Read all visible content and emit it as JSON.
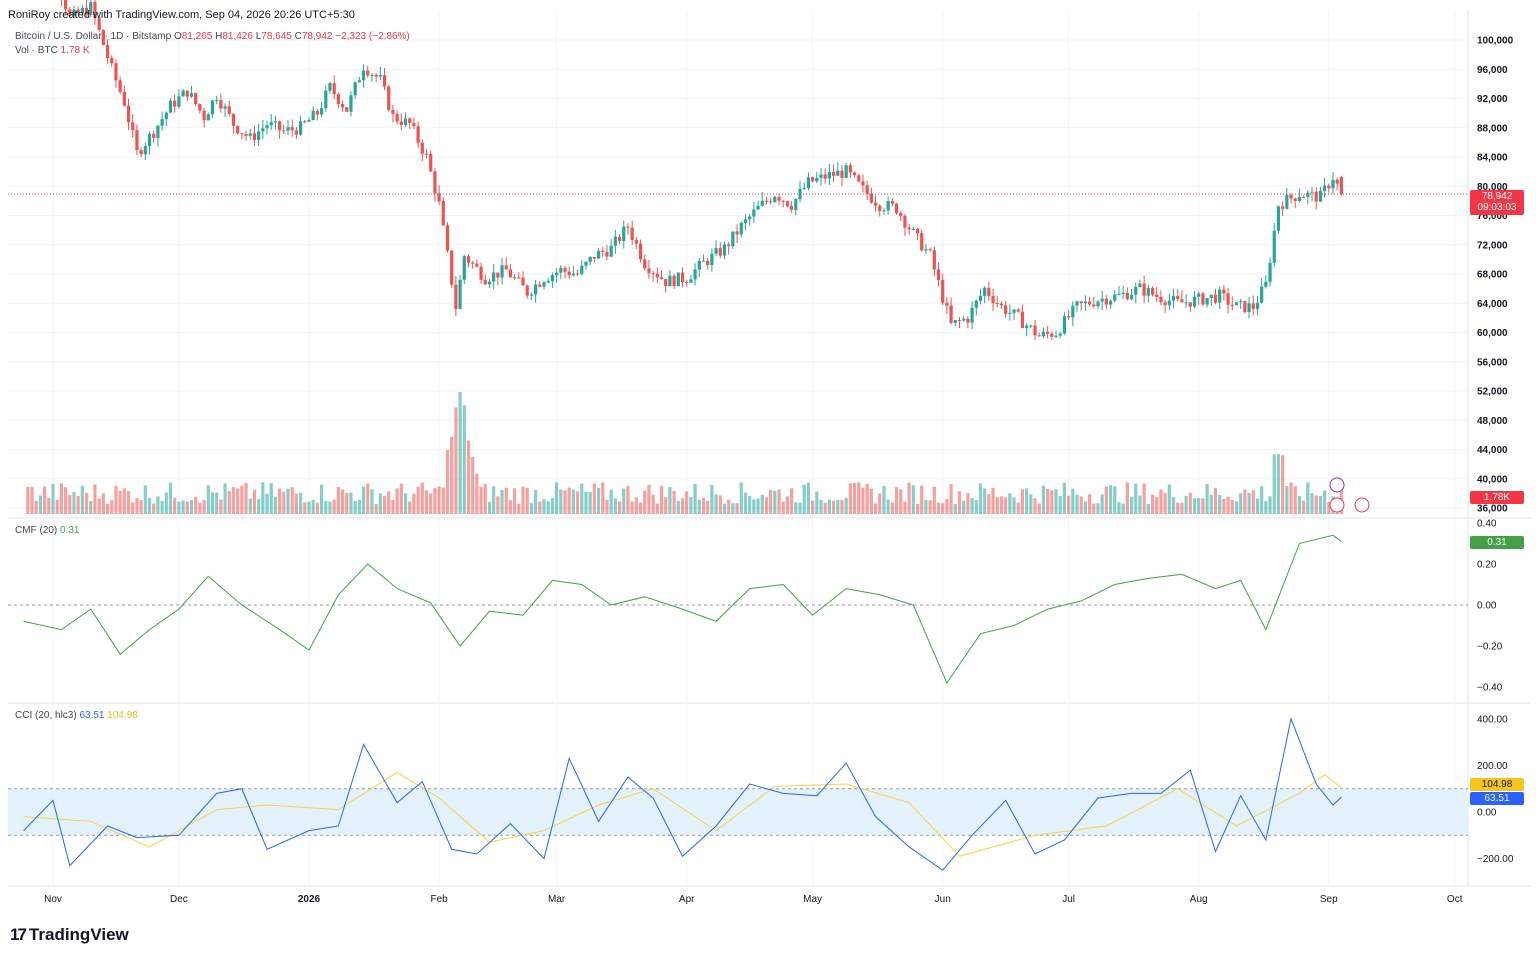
{
  "attribution": "RoniRoy created with TradingView.com, Sep 04, 2026 20:26 UTC+5:30",
  "legend": {
    "symbol": "Bitcoin / U.S. Dollar · 1D · Bitstamp",
    "open_label": "O",
    "open": "81,265",
    "high_label": "H",
    "high": "81,426",
    "low_label": "L",
    "low": "78,645",
    "close_label": "C",
    "close": "78,942",
    "change": "−2,323 (−2.86%)",
    "volume_label": "Vol · BTC",
    "volume": "1.78 K"
  },
  "price_tag": {
    "price": "78,942",
    "countdown": "09:03:03"
  },
  "volume_tag": "1.78K",
  "cmf": {
    "label": "CMF (20)",
    "value": "0.31"
  },
  "cci": {
    "label": "CCI (20, hlc3)",
    "value": "63.51",
    "ma_value": "104.98"
  },
  "logo_text": "TradingView",
  "colors": {
    "up": "#26a69a",
    "down": "#ef5350",
    "cmf": "#43a047",
    "cci": "#2962ff",
    "cci_ma": "#f5d63d",
    "band": "#e3f2fd"
  },
  "chart_data": [
    {
      "type": "candlestick",
      "title": "Bitcoin / U.S. Dollar · 1D · Bitstamp",
      "y_ticks": [
        36000,
        40000,
        44000,
        48000,
        52000,
        56000,
        60000,
        64000,
        68000,
        72000,
        76000,
        80000,
        84000,
        88000,
        92000,
        96000,
        100000
      ],
      "y_tick_labels": [
        "36,000",
        "40,000",
        "44,000",
        "48,000",
        "52,000",
        "56,000",
        "60,000",
        "64,000",
        "68,000",
        "72,000",
        "76,000",
        "80,000",
        "84,000",
        "88,000",
        "92,000",
        "96,000",
        "100,000"
      ],
      "x_tick_labels": [
        "Nov",
        "Dec",
        "2026",
        "Feb",
        "Mar",
        "Apr",
        "May",
        "Jun",
        "Jul",
        "Aug",
        "Sep",
        "Oct"
      ],
      "close_path": [
        [
          "2025-10-25",
          113500
        ],
        [
          "2025-11-01",
          110000
        ],
        [
          "2025-11-05",
          103000
        ],
        [
          "2025-11-10",
          104500
        ],
        [
          "2025-11-15",
          96000
        ],
        [
          "2025-11-18",
          91500
        ],
        [
          "2025-11-21",
          84500
        ],
        [
          "2025-11-25",
          87500
        ],
        [
          "2025-11-29",
          91000
        ],
        [
          "2025-12-03",
          93000
        ],
        [
          "2025-12-07",
          89500
        ],
        [
          "2025-12-10",
          92500
        ],
        [
          "2025-12-14",
          88500
        ],
        [
          "2025-12-18",
          86500
        ],
        [
          "2025-12-22",
          88500
        ],
        [
          "2025-12-26",
          87500
        ],
        [
          "2025-12-30",
          88000
        ],
        [
          "2026-01-03",
          90000
        ],
        [
          "2026-01-06",
          93500
        ],
        [
          "2026-01-10",
          90500
        ],
        [
          "2026-01-14",
          96500
        ],
        [
          "2026-01-18",
          94500
        ],
        [
          "2026-01-21",
          89500
        ],
        [
          "2026-01-25",
          88500
        ],
        [
          "2026-01-29",
          84000
        ],
        [
          "2026-02-01",
          77500
        ],
        [
          "2026-02-05",
          63500
        ],
        [
          "2026-02-07",
          70500
        ],
        [
          "2026-02-12",
          67500
        ],
        [
          "2026-02-17",
          68500
        ],
        [
          "2026-02-22",
          65500
        ],
        [
          "2026-02-26",
          67500
        ],
        [
          "2026-03-02",
          68500
        ],
        [
          "2026-03-06",
          68000
        ],
        [
          "2026-03-10",
          70500
        ],
        [
          "2026-03-14",
          71500
        ],
        [
          "2026-03-18",
          74500
        ],
        [
          "2026-03-22",
          69500
        ],
        [
          "2026-03-27",
          67000
        ],
        [
          "2026-04-01",
          67500
        ],
        [
          "2026-04-05",
          69500
        ],
        [
          "2026-04-10",
          71500
        ],
        [
          "2026-04-14",
          74500
        ],
        [
          "2026-04-18",
          77000
        ],
        [
          "2026-04-22",
          79000
        ],
        [
          "2026-04-26",
          77500
        ],
        [
          "2026-04-30",
          80500
        ],
        [
          "2026-05-05",
          81500
        ],
        [
          "2026-05-09",
          82000
        ],
        [
          "2026-05-13",
          79500
        ],
        [
          "2026-05-17",
          77500
        ],
        [
          "2026-05-21",
          77000
        ],
        [
          "2026-05-25",
          73500
        ],
        [
          "2026-05-29",
          70500
        ],
        [
          "2026-06-03",
          61000
        ],
        [
          "2026-06-07",
          62000
        ],
        [
          "2026-06-11",
          66000
        ],
        [
          "2026-06-15",
          63500
        ],
        [
          "2026-06-19",
          62000
        ],
        [
          "2026-06-24",
          59500
        ],
        [
          "2026-06-28",
          60000
        ],
        [
          "2026-07-03",
          63500
        ],
        [
          "2026-07-08",
          64500
        ],
        [
          "2026-07-13",
          65000
        ],
        [
          "2026-07-18",
          66000
        ],
        [
          "2026-07-22",
          65000
        ],
        [
          "2026-07-27",
          64000
        ],
        [
          "2026-08-01",
          64500
        ],
        [
          "2026-08-06",
          65000
        ],
        [
          "2026-08-10",
          63500
        ],
        [
          "2026-08-14",
          63500
        ],
        [
          "2026-08-17",
          66500
        ],
        [
          "2026-08-20",
          77500
        ],
        [
          "2026-08-25",
          79000
        ],
        [
          "2026-08-30",
          78500
        ],
        [
          "2026-09-02",
          81300
        ],
        [
          "2026-09-04",
          78942
        ]
      ],
      "volume_spikes_btc_relative": "largest near 2026-02-06",
      "last": {
        "open": 81265,
        "high": 81426,
        "low": 78645,
        "close": 78942
      }
    },
    {
      "type": "line",
      "title": "CMF (20)",
      "y_ticks": [
        -0.4,
        -0.2,
        0,
        0.2,
        0.4
      ],
      "y_tick_labels": [
        "−0.40",
        "−0.20",
        "0.00",
        "0.20",
        "0.40"
      ],
      "points": [
        [
          "2025-10-25",
          -0.08
        ],
        [
          "2025-11-03",
          -0.12
        ],
        [
          "2025-11-10",
          -0.02
        ],
        [
          "2025-11-17",
          -0.24
        ],
        [
          "2025-11-24",
          -0.12
        ],
        [
          "2025-12-01",
          -0.02
        ],
        [
          "2025-12-08",
          0.14
        ],
        [
          "2025-12-16",
          0.0
        ],
        [
          "2025-12-25",
          -0.12
        ],
        [
          "2026-01-01",
          -0.22
        ],
        [
          "2026-01-08",
          0.05
        ],
        [
          "2026-01-15",
          0.2
        ],
        [
          "2026-01-22",
          0.08
        ],
        [
          "2026-01-30",
          0.01
        ],
        [
          "2026-02-06",
          -0.2
        ],
        [
          "2026-02-13",
          -0.03
        ],
        [
          "2026-02-21",
          -0.05
        ],
        [
          "2026-02-28",
          0.12
        ],
        [
          "2026-03-07",
          0.1
        ],
        [
          "2026-03-14",
          0.0
        ],
        [
          "2026-03-22",
          0.04
        ],
        [
          "2026-03-31",
          -0.02
        ],
        [
          "2026-04-08",
          -0.08
        ],
        [
          "2026-04-16",
          0.08
        ],
        [
          "2026-04-24",
          0.1
        ],
        [
          "2026-05-01",
          -0.05
        ],
        [
          "2026-05-09",
          0.08
        ],
        [
          "2026-05-17",
          0.05
        ],
        [
          "2026-05-25",
          0.0
        ],
        [
          "2026-06-02",
          -0.38
        ],
        [
          "2026-06-10",
          -0.14
        ],
        [
          "2026-06-18",
          -0.1
        ],
        [
          "2026-06-26",
          -0.02
        ],
        [
          "2026-07-04",
          0.02
        ],
        [
          "2026-07-12",
          0.1
        ],
        [
          "2026-07-20",
          0.13
        ],
        [
          "2026-07-28",
          0.15
        ],
        [
          "2026-08-05",
          0.08
        ],
        [
          "2026-08-11",
          0.12
        ],
        [
          "2026-08-17",
          -0.12
        ],
        [
          "2026-08-25",
          0.3
        ],
        [
          "2026-09-02",
          0.34
        ],
        [
          "2026-09-04",
          0.31
        ]
      ],
      "last": 0.31
    },
    {
      "type": "line",
      "title": "CCI (20, hlc3)",
      "y_ticks": [
        -200,
        0,
        200,
        400
      ],
      "y_tick_labels": [
        "−200.00",
        "0.00",
        "200.00",
        "400.00"
      ],
      "band": [
        -100,
        100
      ],
      "series": [
        {
          "name": "CCI",
          "points": [
            [
              "2025-10-25",
              -80
            ],
            [
              "2025-11-01",
              50
            ],
            [
              "2025-11-05",
              -230
            ],
            [
              "2025-11-14",
              -60
            ],
            [
              "2025-11-21",
              -110
            ],
            [
              "2025-12-01",
              -100
            ],
            [
              "2025-12-10",
              80
            ],
            [
              "2025-12-16",
              100
            ],
            [
              "2025-12-22",
              -160
            ],
            [
              "2026-01-01",
              -80
            ],
            [
              "2026-01-08",
              -60
            ],
            [
              "2026-01-14",
              290
            ],
            [
              "2026-01-22",
              40
            ],
            [
              "2026-01-28",
              130
            ],
            [
              "2026-02-04",
              -160
            ],
            [
              "2026-02-10",
              -180
            ],
            [
              "2026-02-18",
              -50
            ],
            [
              "2026-02-26",
              -200
            ],
            [
              "2026-03-04",
              230
            ],
            [
              "2026-03-11",
              -40
            ],
            [
              "2026-03-18",
              150
            ],
            [
              "2026-03-24",
              60
            ],
            [
              "2026-03-31",
              -190
            ],
            [
              "2026-04-08",
              -60
            ],
            [
              "2026-04-16",
              120
            ],
            [
              "2026-04-24",
              80
            ],
            [
              "2026-05-02",
              70
            ],
            [
              "2026-05-09",
              210
            ],
            [
              "2026-05-16",
              -20
            ],
            [
              "2026-05-24",
              -150
            ],
            [
              "2026-06-01",
              -250
            ],
            [
              "2026-06-08",
              -100
            ],
            [
              "2026-06-16",
              50
            ],
            [
              "2026-06-23",
              -180
            ],
            [
              "2026-06-30",
              -120
            ],
            [
              "2026-07-08",
              60
            ],
            [
              "2026-07-16",
              80
            ],
            [
              "2026-07-23",
              80
            ],
            [
              "2026-07-30",
              180
            ],
            [
              "2026-08-05",
              -170
            ],
            [
              "2026-08-11",
              70
            ],
            [
              "2026-08-17",
              -120
            ],
            [
              "2026-08-23",
              400
            ],
            [
              "2026-08-29",
              120
            ],
            [
              "2026-09-02",
              30
            ],
            [
              "2026-09-04",
              63.51
            ]
          ]
        },
        {
          "name": "MA",
          "points": [
            [
              "2025-10-25",
              -20
            ],
            [
              "2025-11-10",
              -40
            ],
            [
              "2025-11-24",
              -150
            ],
            [
              "2025-12-10",
              10
            ],
            [
              "2025-12-22",
              30
            ],
            [
              "2026-01-08",
              10
            ],
            [
              "2026-01-22",
              170
            ],
            [
              "2026-02-01",
              60
            ],
            [
              "2026-02-13",
              -130
            ],
            [
              "2026-02-26",
              -80
            ],
            [
              "2026-03-11",
              30
            ],
            [
              "2026-03-24",
              100
            ],
            [
              "2026-04-08",
              -80
            ],
            [
              "2026-04-22",
              110
            ],
            [
              "2026-05-09",
              120
            ],
            [
              "2026-05-24",
              40
            ],
            [
              "2026-06-05",
              -190
            ],
            [
              "2026-06-23",
              -100
            ],
            [
              "2026-07-10",
              -60
            ],
            [
              "2026-07-27",
              100
            ],
            [
              "2026-08-10",
              -60
            ],
            [
              "2026-08-25",
              80
            ],
            [
              "2026-08-31",
              160
            ],
            [
              "2026-09-04",
              104.98
            ]
          ]
        }
      ]
    }
  ]
}
